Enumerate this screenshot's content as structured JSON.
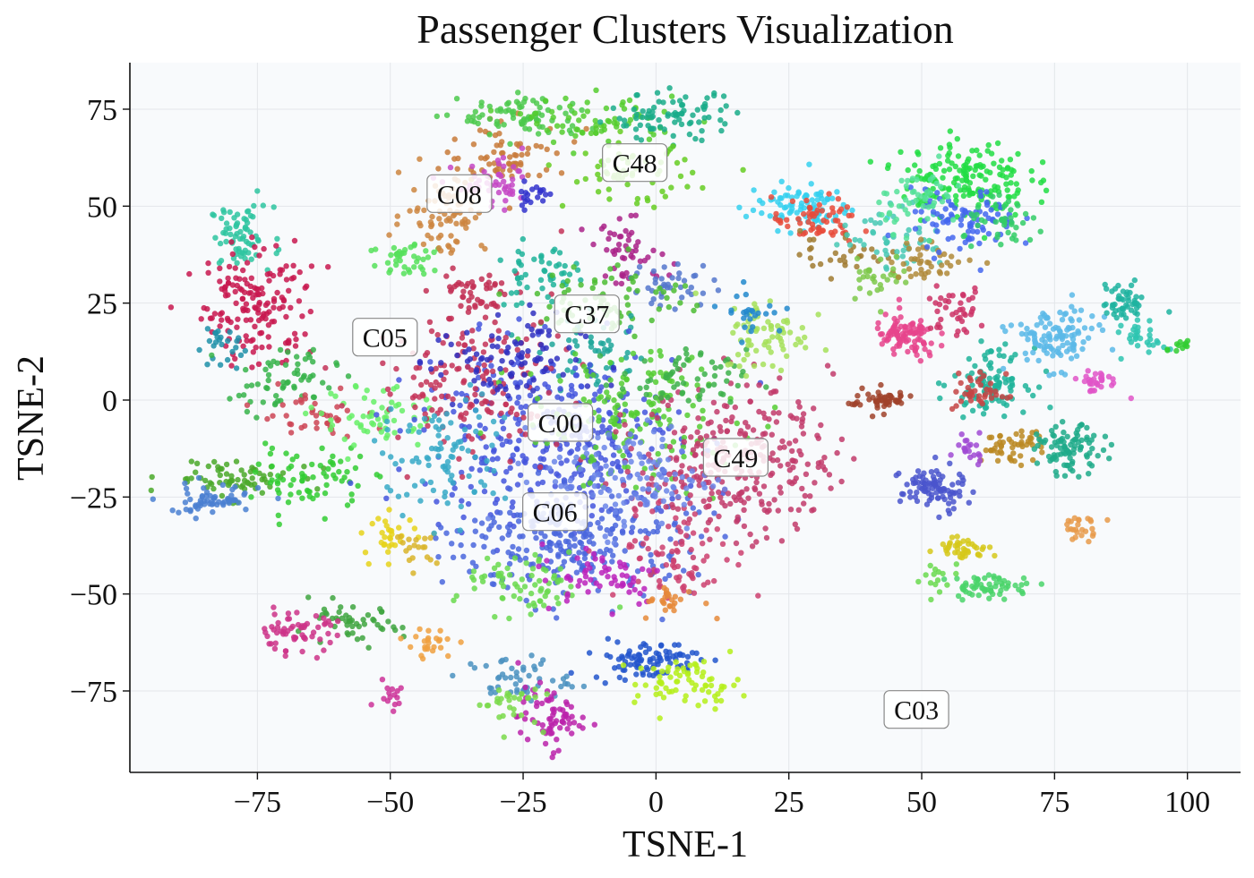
{
  "chart_data": {
    "type": "scatter",
    "title": "Passenger Clusters Visualization",
    "xlabel": "TSNE-1",
    "ylabel": "TSNE-2",
    "xlim": [
      -99,
      110
    ],
    "ylim": [
      -96,
      87
    ],
    "x_ticks": [
      -75,
      -50,
      -25,
      0,
      25,
      50,
      75,
      100
    ],
    "x_tick_labels": [
      "−75",
      "−50",
      "−25",
      "0",
      "25",
      "50",
      "75",
      "100"
    ],
    "y_ticks": [
      75,
      50,
      25,
      0,
      -25,
      -50,
      -75
    ],
    "y_tick_labels": [
      "75",
      "50",
      "25",
      "0",
      "−25",
      "−50",
      "−75"
    ],
    "grid": true,
    "background": "#f8fafc",
    "cluster_labels": [
      {
        "text": "C08",
        "x": -37,
        "y": 53
      },
      {
        "text": "C48",
        "x": -4,
        "y": 61
      },
      {
        "text": "C37",
        "x": -13,
        "y": 22
      },
      {
        "text": "C05",
        "x": -51,
        "y": 16
      },
      {
        "text": "C00",
        "x": -18,
        "y": -6
      },
      {
        "text": "C49",
        "x": 15,
        "y": -15
      },
      {
        "text": "C06",
        "x": -19,
        "y": -29
      },
      {
        "text": "C03",
        "x": 49,
        "y": -80
      }
    ],
    "clusters": [
      {
        "x": -78,
        "y": 42,
        "sx": 3,
        "sy": 4,
        "n": 70,
        "color": "#2ec4a0"
      },
      {
        "x": -75,
        "y": 25,
        "sx": 5,
        "sy": 8,
        "n": 160,
        "color": "#c8174f"
      },
      {
        "x": -82,
        "y": 14,
        "sx": 2,
        "sy": 3,
        "n": 25,
        "color": "#1f8fa8"
      },
      {
        "x": -70,
        "y": 5,
        "sx": 5,
        "sy": 4,
        "n": 60,
        "color": "#37b34a"
      },
      {
        "x": -65,
        "y": -4,
        "sx": 5,
        "sy": 3,
        "n": 40,
        "color": "#cc4455"
      },
      {
        "x": -80,
        "y": -20,
        "sx": 6,
        "sy": 2.5,
        "n": 70,
        "color": "#4aa829"
      },
      {
        "x": -84,
        "y": -26,
        "sx": 5,
        "sy": 2,
        "n": 60,
        "color": "#4a7fd1"
      },
      {
        "x": -65,
        "y": -20,
        "sx": 5,
        "sy": 4,
        "n": 70,
        "color": "#33cc33"
      },
      {
        "x": -52,
        "y": -5,
        "sx": 6,
        "sy": 4,
        "n": 60,
        "color": "#66ee66"
      },
      {
        "x": -58,
        "y": -58,
        "sx": 5,
        "sy": 2.5,
        "n": 50,
        "color": "#3fa53f"
      },
      {
        "x": -68,
        "y": -60,
        "sx": 4,
        "sy": 2.5,
        "n": 60,
        "color": "#cc3388"
      },
      {
        "x": -50,
        "y": -35,
        "sx": 2.5,
        "sy": 3,
        "n": 30,
        "color": "#e6d21a"
      },
      {
        "x": -45,
        "y": -38,
        "sx": 2,
        "sy": 2,
        "n": 20,
        "color": "#d9b42a"
      },
      {
        "x": -42,
        "y": -63,
        "sx": 2.5,
        "sy": 2,
        "n": 25,
        "color": "#f0a040"
      },
      {
        "x": -50,
        "y": -75,
        "sx": 1.5,
        "sy": 2,
        "n": 15,
        "color": "#cc3399"
      },
      {
        "x": -46,
        "y": 36,
        "sx": 4,
        "sy": 3,
        "n": 40,
        "color": "#56e05a"
      },
      {
        "x": -40,
        "y": 48,
        "sx": 4,
        "sy": 5,
        "n": 70,
        "color": "#cd853f"
      },
      {
        "x": -28,
        "y": 63,
        "sx": 6,
        "sy": 4,
        "n": 70,
        "color": "#c87a3a"
      },
      {
        "x": -25,
        "y": 73,
        "sx": 6,
        "sy": 3,
        "n": 80,
        "color": "#4cc94c"
      },
      {
        "x": -10,
        "y": 72,
        "sx": 7,
        "sy": 3,
        "n": 70,
        "color": "#55cc2e"
      },
      {
        "x": 3,
        "y": 73,
        "sx": 6,
        "sy": 3,
        "n": 80,
        "color": "#1aab8a"
      },
      {
        "x": -5,
        "y": 58,
        "sx": 6,
        "sy": 4,
        "n": 60,
        "color": "#66cc22"
      },
      {
        "x": -30,
        "y": 55,
        "sx": 4,
        "sy": 3,
        "n": 50,
        "color": "#c447c4"
      },
      {
        "x": -23,
        "y": 53,
        "sx": 2,
        "sy": 2,
        "n": 20,
        "color": "#3333cc"
      },
      {
        "x": -34,
        "y": 27,
        "sx": 4,
        "sy": 4,
        "n": 50,
        "color": "#c22f53"
      },
      {
        "x": -22,
        "y": 32,
        "sx": 4,
        "sy": 4,
        "n": 50,
        "color": "#1fb39a"
      },
      {
        "x": -5,
        "y": 38,
        "sx": 4,
        "sy": 4,
        "n": 50,
        "color": "#aa2288"
      },
      {
        "x": 3,
        "y": 30,
        "sx": 4,
        "sy": 3,
        "n": 40,
        "color": "#5577cc"
      },
      {
        "x": -8,
        "y": 26,
        "sx": 7,
        "sy": 5,
        "n": 80,
        "color": "#4cbc33"
      },
      {
        "x": -12,
        "y": 12,
        "sx": 5,
        "sy": 4,
        "n": 50,
        "color": "#1fa69a"
      },
      {
        "x": -20,
        "y": -10,
        "sx": 12,
        "sy": 12,
        "n": 380,
        "color": "#4455dd"
      },
      {
        "x": -15,
        "y": -37,
        "sx": 11,
        "sy": 7,
        "n": 260,
        "color": "#4a66dd"
      },
      {
        "x": -35,
        "y": 5,
        "sx": 9,
        "sy": 9,
        "n": 160,
        "color": "#c43358"
      },
      {
        "x": -5,
        "y": -5,
        "sx": 10,
        "sy": 9,
        "n": 160,
        "color": "#55cc33"
      },
      {
        "x": 15,
        "y": -15,
        "sx": 9,
        "sy": 10,
        "n": 300,
        "color": "#c23b6b"
      },
      {
        "x": 5,
        "y": -40,
        "sx": 6,
        "sy": 6,
        "n": 80,
        "color": "#cc3f6e"
      },
      {
        "x": -40,
        "y": -15,
        "sx": 6,
        "sy": 8,
        "n": 90,
        "color": "#37a9c7"
      },
      {
        "x": -25,
        "y": -48,
        "sx": 6,
        "sy": 4,
        "n": 70,
        "color": "#6ad94e"
      },
      {
        "x": -28,
        "y": 10,
        "sx": 7,
        "sy": 6,
        "n": 90,
        "color": "#3030c0"
      },
      {
        "x": 5,
        "y": 5,
        "sx": 6,
        "sy": 4,
        "n": 60,
        "color": "#3db04a"
      },
      {
        "x": -5,
        "y": -20,
        "sx": 8,
        "sy": 7,
        "n": 120,
        "color": "#6b85e8"
      },
      {
        "x": -10,
        "y": -45,
        "sx": 6,
        "sy": 4,
        "n": 60,
        "color": "#bb22bb"
      },
      {
        "x": 3,
        "y": -52,
        "sx": 3,
        "sy": 2,
        "n": 25,
        "color": "#e68a3a"
      },
      {
        "x": 21,
        "y": 17,
        "sx": 4,
        "sy": 5,
        "n": 70,
        "color": "#a6e05a"
      },
      {
        "x": 18,
        "y": 23,
        "sx": 3,
        "sy": 3,
        "n": 25,
        "color": "#2288cc"
      },
      {
        "x": -2,
        "y": -67,
        "sx": 5,
        "sy": 2.5,
        "n": 90,
        "color": "#2255cc"
      },
      {
        "x": 6,
        "y": -73,
        "sx": 5,
        "sy": 3,
        "n": 70,
        "color": "#b5ee1a"
      },
      {
        "x": -26,
        "y": -72,
        "sx": 5,
        "sy": 3,
        "n": 50,
        "color": "#4a90c0"
      },
      {
        "x": -20,
        "y": -82,
        "sx": 3,
        "sy": 4,
        "n": 70,
        "color": "#bb22aa"
      },
      {
        "x": -28,
        "y": -78,
        "sx": 3,
        "sy": 3,
        "n": 30,
        "color": "#7ad94a"
      },
      {
        "x": 27,
        "y": 50,
        "sx": 5,
        "sy": 3,
        "n": 90,
        "color": "#35d0ee"
      },
      {
        "x": 30,
        "y": 46,
        "sx": 4,
        "sy": 3,
        "n": 60,
        "color": "#e84a3a"
      },
      {
        "x": 35,
        "y": 38,
        "sx": 4,
        "sy": 3,
        "n": 30,
        "color": "#a07a30"
      },
      {
        "x": 45,
        "y": 42,
        "sx": 5,
        "sy": 4,
        "n": 50,
        "color": "#46c8b4"
      },
      {
        "x": 42,
        "y": 32,
        "sx": 3,
        "sy": 3,
        "n": 30,
        "color": "#7ec84a"
      },
      {
        "x": 52,
        "y": 36,
        "sx": 4,
        "sy": 2.5,
        "n": 40,
        "color": "#b08a3a"
      },
      {
        "x": 58,
        "y": 57,
        "sx": 6,
        "sy": 5,
        "n": 170,
        "color": "#22dd44"
      },
      {
        "x": 58,
        "y": 46,
        "sx": 5,
        "sy": 4,
        "n": 90,
        "color": "#4466ee"
      },
      {
        "x": 50,
        "y": 52,
        "sx": 4,
        "sy": 4,
        "n": 50,
        "color": "#55e099"
      },
      {
        "x": 66,
        "y": 45,
        "sx": 4,
        "sy": 3,
        "n": 40,
        "color": "#33cc66"
      },
      {
        "x": 47,
        "y": 16,
        "sx": 3,
        "sy": 3,
        "n": 90,
        "color": "#e6448c"
      },
      {
        "x": 56,
        "y": 23,
        "sx": 3,
        "sy": 3,
        "n": 40,
        "color": "#cc3366"
      },
      {
        "x": 63,
        "y": 5,
        "sx": 3.5,
        "sy": 4,
        "n": 100,
        "color": "#1fb39a"
      },
      {
        "x": 61,
        "y": 2,
        "sx": 2.5,
        "sy": 2.5,
        "n": 40,
        "color": "#c44444"
      },
      {
        "x": 75,
        "y": 16,
        "sx": 4,
        "sy": 4,
        "n": 110,
        "color": "#5bb8e8"
      },
      {
        "x": 83,
        "y": 5,
        "sx": 2.5,
        "sy": 1.5,
        "n": 30,
        "color": "#e055c8"
      },
      {
        "x": 88,
        "y": 25,
        "sx": 2,
        "sy": 2.5,
        "n": 50,
        "color": "#1fb3a0"
      },
      {
        "x": 92,
        "y": 16,
        "sx": 2,
        "sy": 2,
        "n": 30,
        "color": "#2ec4b0"
      },
      {
        "x": 99,
        "y": 14,
        "sx": 1,
        "sy": 1,
        "n": 12,
        "color": "#33cc33"
      },
      {
        "x": 42,
        "y": 0,
        "sx": 3,
        "sy": 1.5,
        "n": 50,
        "color": "#a0422a"
      },
      {
        "x": 52,
        "y": -23,
        "sx": 3,
        "sy": 3,
        "n": 90,
        "color": "#4a55cc"
      },
      {
        "x": 67,
        "y": -12,
        "sx": 3,
        "sy": 2,
        "n": 50,
        "color": "#bb8822"
      },
      {
        "x": 78,
        "y": -13,
        "sx": 3,
        "sy": 3,
        "n": 90,
        "color": "#1faa8a"
      },
      {
        "x": 59,
        "y": -12,
        "sx": 2,
        "sy": 2,
        "n": 20,
        "color": "#a04ad4"
      },
      {
        "x": 58,
        "y": -38,
        "sx": 2.5,
        "sy": 1.5,
        "n": 40,
        "color": "#d6c81a"
      },
      {
        "x": 63,
        "y": -48,
        "sx": 4,
        "sy": 1.5,
        "n": 60,
        "color": "#4ad46a"
      },
      {
        "x": 53,
        "y": -46,
        "sx": 2,
        "sy": 2,
        "n": 15,
        "color": "#6ad94e"
      },
      {
        "x": 80,
        "y": -33,
        "sx": 2,
        "sy": 1.5,
        "n": 25,
        "color": "#e89a4a"
      }
    ]
  }
}
